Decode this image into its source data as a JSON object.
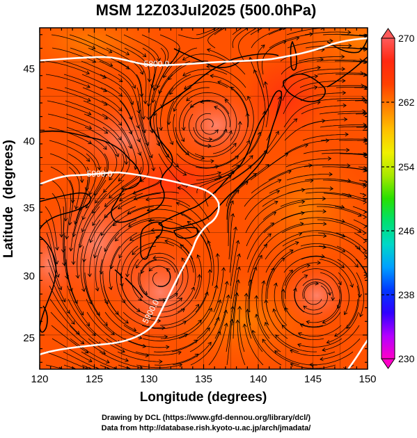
{
  "title": "MSM 12Z03Jul2025 (500.0hPa)",
  "x_axis": {
    "label": "Longitude (degrees)",
    "ticks": [
      "120",
      "125",
      "130",
      "135",
      "140",
      "145",
      "150"
    ]
  },
  "y_axis": {
    "label": "Latitude  (degrees)",
    "ticks": [
      "25",
      "30",
      "35",
      "40",
      "45"
    ]
  },
  "colorbar": {
    "labels": [
      "270",
      "262",
      "254",
      "246",
      "238",
      "230"
    ],
    "colors": [
      "#ff00c8",
      "#b400ff",
      "#3000ff",
      "#0038ff",
      "#00a0ff",
      "#00d8c8",
      "#00e070",
      "#28e000",
      "#a8e800",
      "#f0f000",
      "#ffc000",
      "#ff8000",
      "#ff4000",
      "#ff2810",
      "#ff5a5a"
    ]
  },
  "contours": [
    {
      "value_label": "5800.0"
    },
    {
      "value_label": "5900.0"
    },
    {
      "value_label": "5900.0"
    }
  ],
  "credits": {
    "line1": "Drawing by DCL (https://www.gfd-dennou.org/library/dcl/)",
    "line2": "Data from http://database.rish.kyoto-u.ac.jp/arch/jmadata/"
  },
  "map": {
    "lon_range": [
      120,
      150
    ],
    "lat_range": [
      22.5,
      47.5
    ],
    "field_colors": [
      "#ff5000",
      "#ff6a00",
      "#ff3a1a",
      "#ff7a70"
    ]
  }
}
